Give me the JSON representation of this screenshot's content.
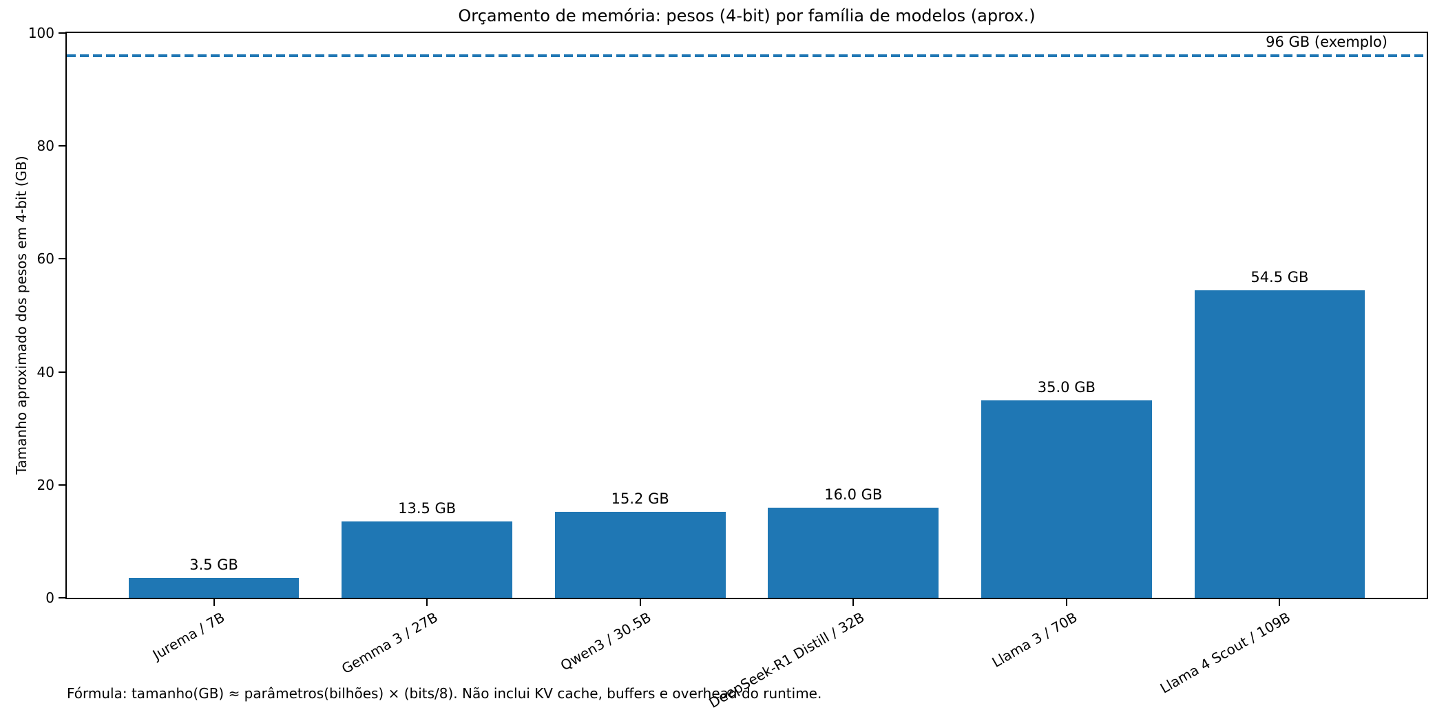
{
  "chart_data": {
    "type": "bar",
    "title": "Orçamento de memória: pesos (4-bit) por família de modelos (aprox.)",
    "xlabel": "",
    "ylabel": "Tamanho aproximado dos pesos em 4-bit (GB)",
    "categories": [
      "Jurema / 7B",
      "Gemma 3 / 27B",
      "Qwen3 / 30.5B",
      "DeepSeek-R1 Distill / 32B",
      "Llama 3 / 70B",
      "Llama 4 Scout / 109B"
    ],
    "values": [
      3.5,
      13.5,
      15.2,
      16.0,
      35.0,
      54.5
    ],
    "bar_labels": [
      "3.5 GB",
      "13.5 GB",
      "15.2 GB",
      "16.0 GB",
      "35.0 GB",
      "54.5 GB"
    ],
    "bar_color": "#1f77b4",
    "ylim": [
      0,
      100
    ],
    "yticks": [
      0,
      20,
      40,
      60,
      80,
      100
    ],
    "xlim": [
      -0.69,
      5.69
    ],
    "bar_width": 0.8,
    "x_tick_rotation_deg": 30,
    "grid": false,
    "legend": "none",
    "reference_line": {
      "value": 96,
      "label": "96 GB (exemplo)",
      "color": "#1f77b4",
      "linestyle": "dashed"
    },
    "footnote": "Fórmula: tamanho(GB) ≈ parâmetros(bilhões) × (bits/8). Não inclui KV cache, buffers e overhead do runtime."
  }
}
